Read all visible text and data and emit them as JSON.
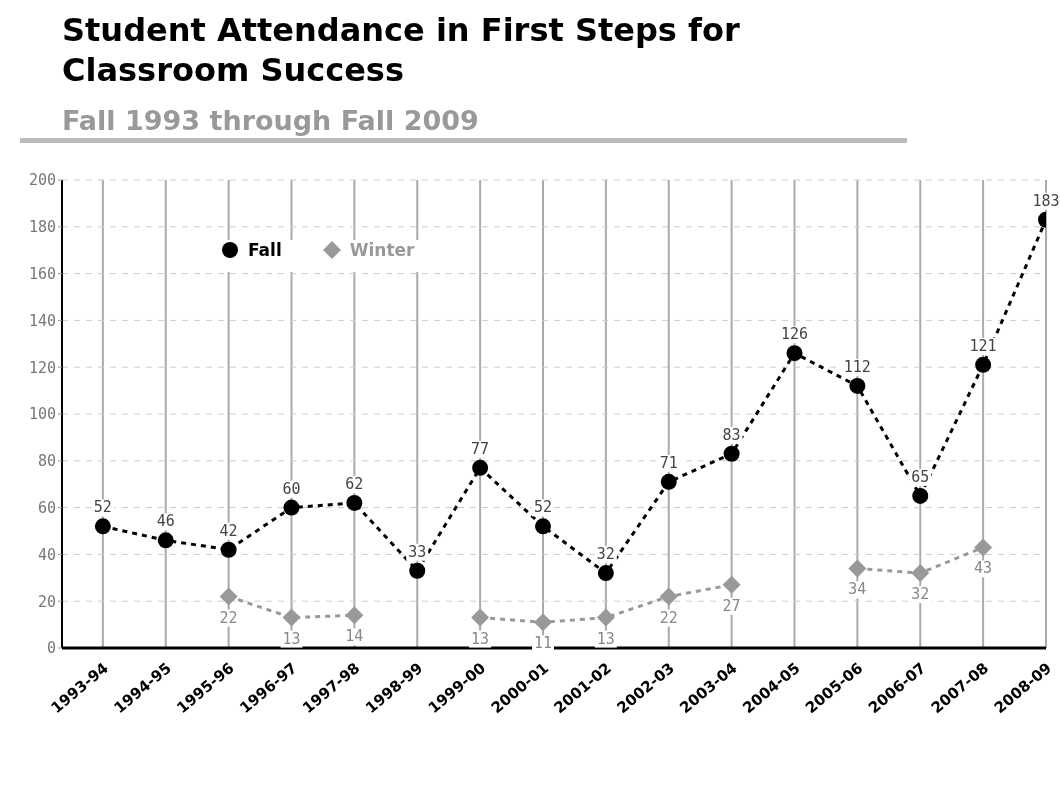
{
  "chart_data": {
    "type": "line",
    "title": "Student Attendance in First Steps for Classroom Success",
    "subtitle": "Fall 1993 through Fall 2009",
    "categories": [
      "1993-94",
      "1994-95",
      "1995-96",
      "1996-97",
      "1997-98",
      "1998-99",
      "1999-00",
      "2000-01",
      "2001-02",
      "2002-03",
      "2003-04",
      "2004-05",
      "2005-06",
      "2006-07",
      "2007-08",
      "2008-09"
    ],
    "series": [
      {
        "name": "Fall",
        "color": "#000000",
        "marker": "circle",
        "values": [
          52,
          46,
          42,
          60,
          62,
          33,
          77,
          52,
          32,
          71,
          83,
          126,
          112,
          65,
          121,
          183
        ]
      },
      {
        "name": "Winter",
        "color": "#999999",
        "marker": "diamond",
        "values": [
          null,
          null,
          22,
          13,
          14,
          null,
          13,
          11,
          13,
          22,
          27,
          null,
          34,
          32,
          43,
          null
        ]
      }
    ],
    "ylim": [
      0,
      200
    ],
    "yticks": [
      0,
      20,
      40,
      60,
      80,
      100,
      120,
      140,
      160,
      180,
      200
    ],
    "grid": true,
    "legend": "top left",
    "line_style": "dashed",
    "data_labels": true
  }
}
